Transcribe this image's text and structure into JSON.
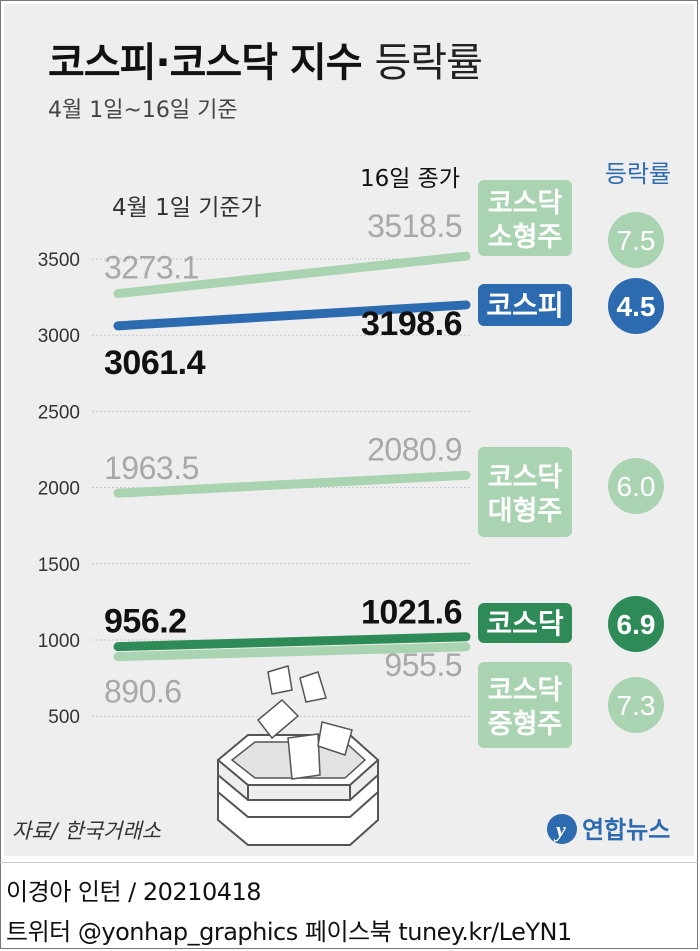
{
  "title_main": "코스피·코스닥 지수",
  "title_sub": "등락률",
  "subtitle": "4월 1일~16일 기준",
  "column_labels": {
    "start": "4월 1일 기준가",
    "end": "16일 종가",
    "change": "등락률"
  },
  "source": "자료/ 한국거래소",
  "logo_text": "연합뉴스",
  "credit": "이경아 인턴 / 20210418",
  "social": "트위터 @yonhap_graphics  페이스북 tuney.kr/LeYN1",
  "colors": {
    "kospi": "#2d6bb0",
    "kosdaq": "#2e8b57",
    "light_green": "#a9d3b1",
    "grid": "#c8c8c8",
    "background": "#eeeeee"
  },
  "chart_data": {
    "type": "line",
    "ylim": [
      300,
      3700
    ],
    "yticks": [
      500,
      1000,
      1500,
      2000,
      2500,
      3000,
      3500
    ],
    "grid": true,
    "x": [
      "4월 1일",
      "16일"
    ],
    "series": [
      {
        "name": "코스닥 소형주",
        "start": 3273.1,
        "end": 3518.5,
        "start_label": "3273.1",
        "end_label": "3518.5",
        "change": "7.5",
        "color": "#a9d3b1",
        "emphasis": false
      },
      {
        "name": "코스피",
        "start": 3061.4,
        "end": 3198.6,
        "start_label": "3061.4",
        "end_label": "3198.6",
        "change": "4.5",
        "color": "#2d6bb0",
        "emphasis": true
      },
      {
        "name": "코스닥 대형주",
        "start": 1963.5,
        "end": 2080.9,
        "start_label": "1963.5",
        "end_label": "2080.9",
        "change": "6.0",
        "color": "#a9d3b1",
        "emphasis": false
      },
      {
        "name": "코스닥",
        "start": 956.2,
        "end": 1021.6,
        "start_label": "956.2",
        "end_label": "1021.6",
        "change": "6.9",
        "color": "#2e8b57",
        "emphasis": true
      },
      {
        "name": "코스닥 중형주",
        "start": 890.6,
        "end": 955.5,
        "start_label": "890.6",
        "end_label": "955.5",
        "change": "7.3",
        "color": "#a9d3b1",
        "emphasis": false
      }
    ]
  }
}
